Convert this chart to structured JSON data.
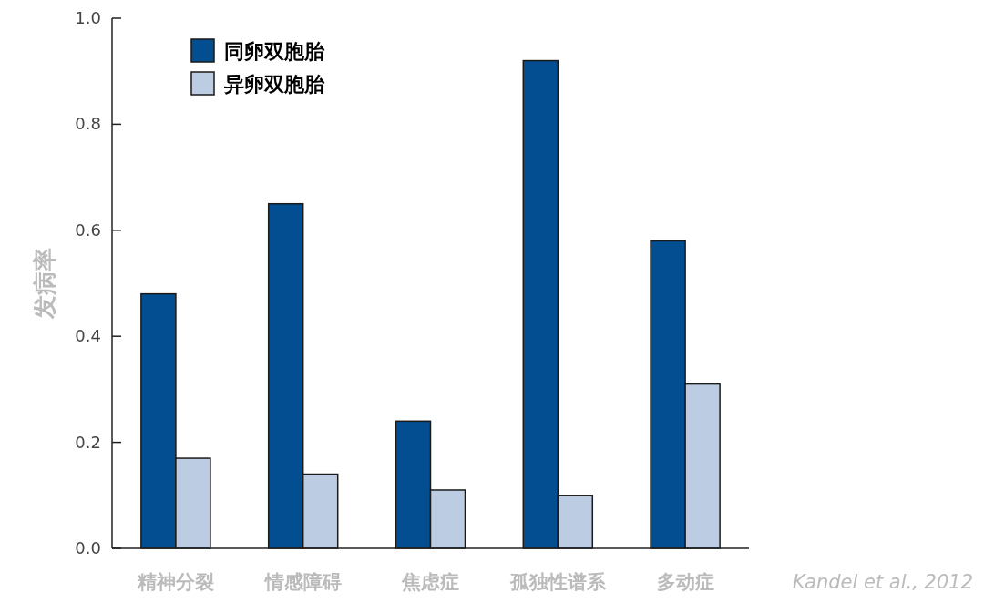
{
  "chart_data": {
    "type": "bar",
    "ylabel": "发病率",
    "categories": [
      "精神分裂",
      "情感障碍",
      "焦虑症",
      "孤独性谱系",
      "多动症"
    ],
    "series": [
      {
        "name": "同卵双胞胎",
        "color": "#034e91",
        "values": [
          0.48,
          0.65,
          0.24,
          0.92,
          0.58
        ]
      },
      {
        "name": "异卵双胞胎",
        "color": "#bccce3",
        "values": [
          0.17,
          0.14,
          0.11,
          0.1,
          0.31
        ]
      }
    ],
    "ylim": [
      0,
      1.0
    ],
    "yticks": [
      {
        "value": 0,
        "label": "0.0"
      },
      {
        "value": 0.2,
        "label": "0.2"
      },
      {
        "value": 0.4,
        "label": "0.4"
      },
      {
        "value": 0.6,
        "label": "0.6"
      },
      {
        "value": 0.8,
        "label": "0.8"
      },
      {
        "value": 1.0,
        "label": "1.0"
      }
    ],
    "legend": "top left",
    "grid": false,
    "annotations": [
      "Kandel et al., 2012"
    ]
  }
}
